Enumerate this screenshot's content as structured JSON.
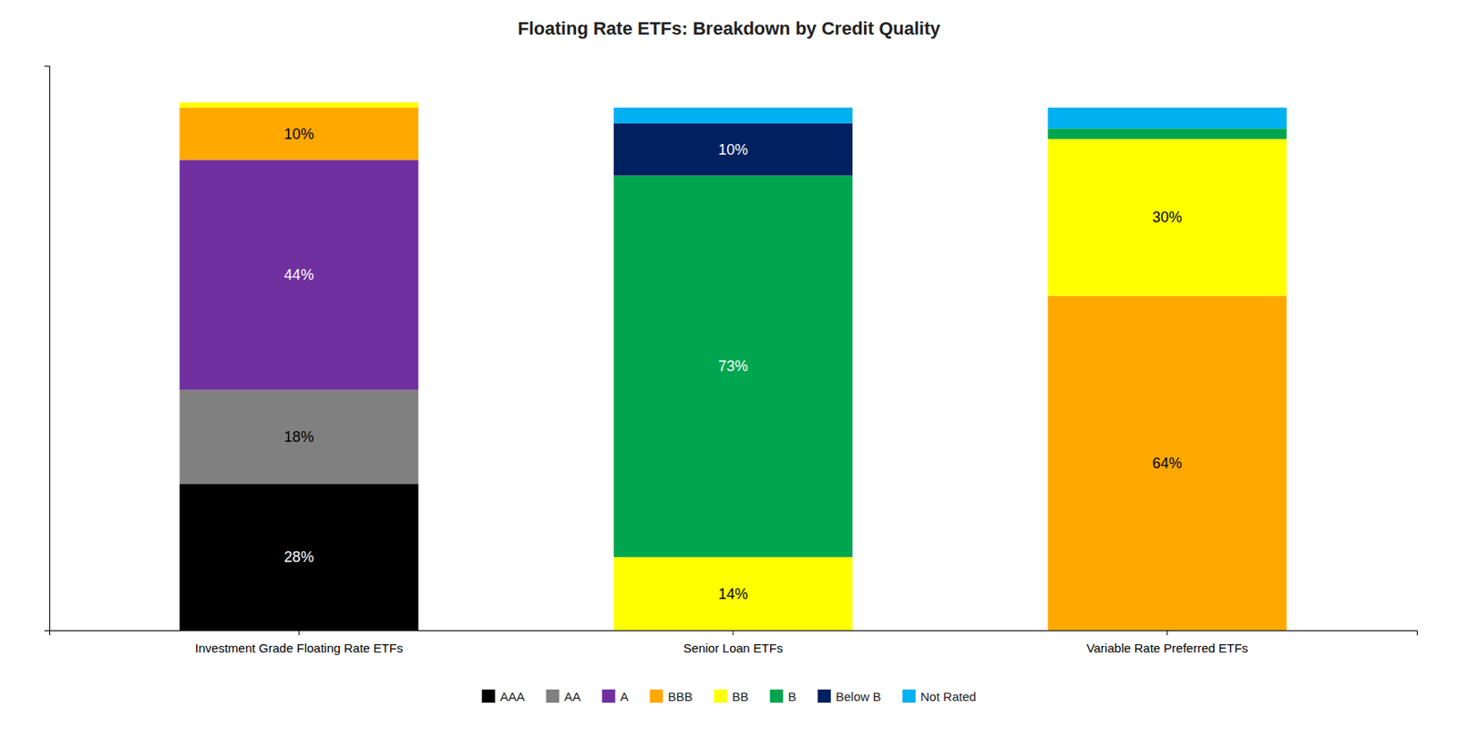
{
  "chart_data": {
    "type": "bar",
    "stacked": true,
    "title": "Floating Rate ETFs: Breakdown by Credit Quality",
    "categories": [
      "Investment Grade Floating Rate ETFs",
      "Senior Loan ETFs",
      "Variable Rate Preferred ETFs"
    ],
    "series": [
      {
        "name": "AAA",
        "color": "#000000",
        "values": [
          28,
          0,
          0
        ],
        "value_labels": [
          "28%",
          null,
          null
        ]
      },
      {
        "name": "AA",
        "color": "#808080",
        "values": [
          18,
          0,
          0
        ],
        "value_labels": [
          "18%",
          null,
          null
        ]
      },
      {
        "name": "A",
        "color": "#7030A0",
        "values": [
          44,
          0,
          0
        ],
        "value_labels": [
          "44%",
          null,
          null
        ]
      },
      {
        "name": "BBB",
        "color": "#FFA800",
        "values": [
          10,
          0,
          64
        ],
        "value_labels": [
          "10%",
          null,
          "64%"
        ]
      },
      {
        "name": "BB",
        "color": "#FFFF00",
        "values": [
          1,
          14,
          30
        ],
        "value_labels": [
          null,
          "14%",
          "30%"
        ]
      },
      {
        "name": "B",
        "color": "#00A550",
        "values": [
          0,
          73,
          2
        ],
        "value_labels": [
          null,
          "73%",
          null
        ]
      },
      {
        "name": "Below B",
        "color": "#002060",
        "values": [
          0,
          10,
          0
        ],
        "value_labels": [
          null,
          "10%",
          null
        ]
      },
      {
        "name": "Not Rated",
        "color": "#00B0F0",
        "values": [
          0,
          3,
          4
        ],
        "value_labels": [
          null,
          null,
          null
        ]
      }
    ],
    "ylim": [
      0,
      108
    ],
    "yticks": [],
    "tick_labels": "x",
    "data_labels": true,
    "grid": false,
    "legend": "bottom"
  }
}
